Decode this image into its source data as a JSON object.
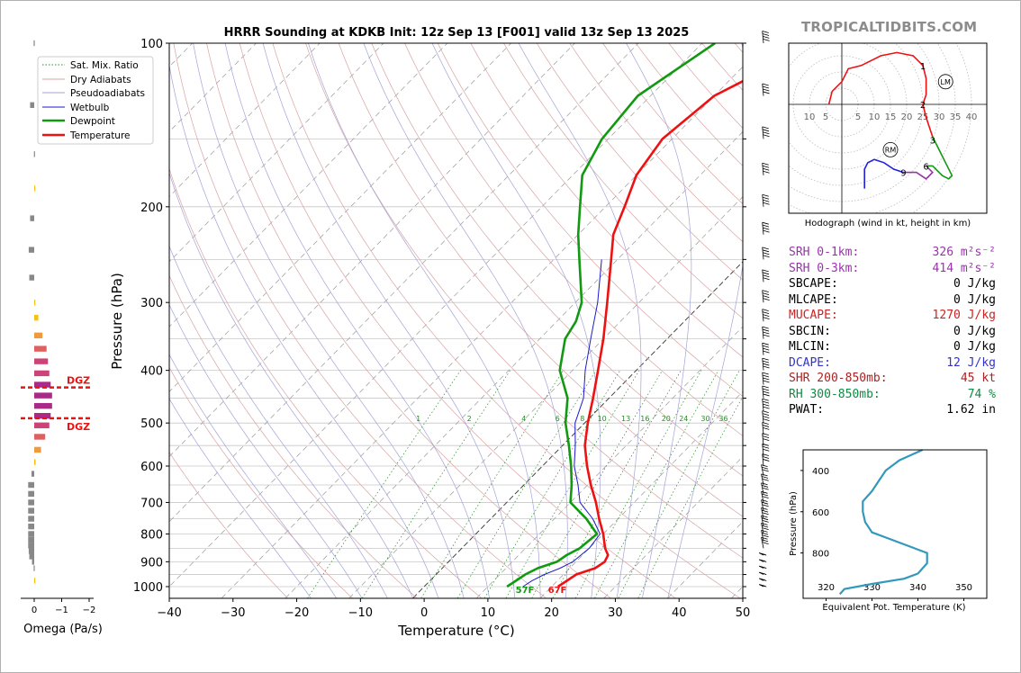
{
  "header": {
    "title": "HRRR Sounding at KDKB Init: 12z Sep 13 [F001] valid 13z Sep 13 2025",
    "brand": "TROPICALTIDBITS.COM"
  },
  "colors": {
    "temperature": "#ee1111",
    "dewpoint": "#119911",
    "wetbulb": "#1a1acc",
    "srh": "#9933aa",
    "mucape": "#cc2222",
    "dcape": "#3333cc",
    "shr": "#aa2222",
    "rh": "#118844",
    "theta_e": "#3399bb"
  },
  "legend": {
    "sat_mix": "Sat. Mix. Ratio",
    "dry": "Dry Adiabats",
    "pseudo": "Pseudoadiabats",
    "wetbulb": "Wetbulb",
    "dewpoint": "Dewpoint",
    "temperature": "Temperature"
  },
  "omega": {
    "xlabel": "Omega (Pa/s)",
    "ticks": [
      "0",
      "−1",
      "−2"
    ],
    "dgz_label": "DGZ"
  },
  "hodograph": {
    "caption": "Hodograph (wind in kt, height in km)",
    "ring_labels": [
      "10",
      "5",
      "5",
      "10",
      "15",
      "20",
      "25",
      "30",
      "35",
      "40"
    ],
    "height_labels": [
      "1",
      "2",
      "3",
      "6",
      "9"
    ],
    "rm": "RM",
    "lm": "LM"
  },
  "params": [
    {
      "label": "SRH 0-1km:",
      "value": "326",
      "unit": "m²s⁻²",
      "color": "#9933aa"
    },
    {
      "label": "SRH 0-3km:",
      "value": "414",
      "unit": "m²s⁻²",
      "color": "#9933aa"
    },
    {
      "label": "SBCAPE:",
      "value": "0 J/kg",
      "color": "#000000"
    },
    {
      "label": "MLCAPE:",
      "value": "0 J/kg",
      "color": "#000000"
    },
    {
      "label": "MUCAPE:",
      "value": "1270 J/kg",
      "color": "#cc2222"
    },
    {
      "label": "SBCIN:",
      "value": "0 J/kg",
      "color": "#000000"
    },
    {
      "label": "MLCIN:",
      "value": "0 J/kg",
      "color": "#000000"
    },
    {
      "label": "DCAPE:",
      "value": "12 J/kg",
      "color": "#3333cc"
    },
    {
      "label": "SHR 200-850mb:",
      "value": "45 kt",
      "color": "#aa2222"
    },
    {
      "label": "RH 300-850mb:",
      "value": "74 %",
      "color": "#118844"
    },
    {
      "label": "PWAT:",
      "value": "1.62 in",
      "color": "#000000"
    }
  ],
  "chart_data": [
    {
      "type": "line",
      "title": "HRRR Sounding at KDKB Init: 12z Sep 13 [F001] valid 13z Sep 13 2025",
      "xlabel": "Temperature (°C)",
      "ylabel": "Pressure (hPa)",
      "xlim": [
        -40,
        50
      ],
      "ylim": [
        1050,
        100
      ],
      "y_scale": "log",
      "x_ticks": [
        "−40",
        "−30",
        "−20",
        "−10",
        "0",
        "10",
        "20",
        "30",
        "40",
        "50"
      ],
      "y_ticks": [
        "100",
        "200",
        "300",
        "400",
        "500",
        "600",
        "700",
        "800",
        "900",
        "1000"
      ],
      "mixing_ratio_labels": [
        "1",
        "2",
        "4",
        "6",
        "8",
        "10",
        "13",
        "16",
        "20",
        "24",
        "30",
        "36"
      ],
      "surface_labels": {
        "dewpoint": "57F",
        "temperature": "67F"
      },
      "series": [
        {
          "name": "Temperature",
          "points": [
            [
              1000,
              21.0
            ],
            [
              975,
              21.5
            ],
            [
              950,
              22.0
            ],
            [
              925,
              24.0
            ],
            [
              900,
              24.5
            ],
            [
              875,
              24.0
            ],
            [
              850,
              22.5
            ],
            [
              800,
              20.0
            ],
            [
              750,
              17.0
            ],
            [
              700,
              14.0
            ],
            [
              650,
              10.5
            ],
            [
              600,
              7.0
            ],
            [
              550,
              3.5
            ],
            [
              500,
              0.5
            ],
            [
              450,
              -2.5
            ],
            [
              400,
              -6.0
            ],
            [
              350,
              -10.0
            ],
            [
              300,
              -15.0
            ],
            [
              250,
              -21.0
            ],
            [
              225,
              -24.5
            ],
            [
              200,
              -27.0
            ],
            [
              175,
              -30.0
            ],
            [
              150,
              -31.5
            ],
            [
              125,
              -30.0
            ],
            [
              100,
              -22.0
            ]
          ]
        },
        {
          "name": "Dewpoint",
          "points": [
            [
              1000,
              13.0
            ],
            [
              975,
              13.5
            ],
            [
              950,
              14.0
            ],
            [
              925,
              15.0
            ],
            [
              900,
              17.0
            ],
            [
              875,
              17.5
            ],
            [
              850,
              18.5
            ],
            [
              800,
              19.0
            ],
            [
              750,
              15.0
            ],
            [
              700,
              10.0
            ],
            [
              650,
              7.5
            ],
            [
              600,
              4.5
            ],
            [
              550,
              1.0
            ],
            [
              500,
              -3.0
            ],
            [
              450,
              -6.5
            ],
            [
              400,
              -12.0
            ],
            [
              350,
              -16.0
            ],
            [
              325,
              -17.0
            ],
            [
              300,
              -19.0
            ],
            [
              250,
              -26.0
            ],
            [
              225,
              -30.0
            ],
            [
              200,
              -34.0
            ],
            [
              175,
              -38.5
            ],
            [
              150,
              -41.0
            ],
            [
              125,
              -42.0
            ],
            [
              100,
              -38.0
            ]
          ]
        },
        {
          "name": "Wetbulb",
          "points": [
            [
              1000,
              15.5
            ],
            [
              975,
              16.0
            ],
            [
              950,
              17.0
            ],
            [
              925,
              18.5
            ],
            [
              900,
              19.5
            ],
            [
              850,
              20.0
            ],
            [
              800,
              19.5
            ],
            [
              750,
              16.0
            ],
            [
              700,
              11.5
            ],
            [
              650,
              8.5
            ],
            [
              600,
              5.0
            ],
            [
              550,
              2.0
            ],
            [
              500,
              -1.5
            ],
            [
              450,
              -4.0
            ],
            [
              400,
              -8.0
            ],
            [
              350,
              -12.0
            ],
            [
              300,
              -16.5
            ],
            [
              250,
              -22.5
            ]
          ]
        }
      ]
    },
    {
      "type": "bar",
      "title": "",
      "xlabel": "Omega (Pa/s)",
      "xlim": [
        0.15,
        -2.2
      ],
      "bars": [
        [
          100,
          0.02
        ],
        [
          130,
          0.15
        ],
        [
          160,
          0.01
        ],
        [
          185,
          -0.03
        ],
        [
          210,
          0.15
        ],
        [
          240,
          0.2
        ],
        [
          270,
          0.18
        ],
        [
          300,
          -0.01
        ],
        [
          320,
          -0.15
        ],
        [
          345,
          -0.3
        ],
        [
          365,
          -0.45
        ],
        [
          385,
          -0.5
        ],
        [
          405,
          -0.55
        ],
        [
          425,
          -0.6
        ],
        [
          445,
          -0.65
        ],
        [
          465,
          -0.65
        ],
        [
          485,
          -0.6
        ],
        [
          505,
          -0.55
        ],
        [
          530,
          -0.4
        ],
        [
          560,
          -0.25
        ],
        [
          590,
          -0.05
        ],
        [
          620,
          0.1
        ],
        [
          650,
          0.22
        ],
        [
          675,
          0.22
        ],
        [
          700,
          0.22
        ],
        [
          725,
          0.22
        ],
        [
          750,
          0.22
        ],
        [
          775,
          0.22
        ],
        [
          800,
          0.22
        ],
        [
          820,
          0.22
        ],
        [
          840,
          0.22
        ],
        [
          860,
          0.2
        ],
        [
          880,
          0.18
        ],
        [
          900,
          0.08
        ],
        [
          925,
          0.02
        ],
        [
          975,
          -0.03
        ]
      ],
      "dgz": [
        430,
        490
      ]
    },
    {
      "type": "line",
      "title": "Hodograph (wind in kt, height in km)",
      "unit": "kt",
      "rings": [
        5,
        10,
        15,
        20,
        25,
        30,
        35,
        40
      ],
      "height_markers": [
        {
          "label": "1",
          "u": 25,
          "v": 12
        },
        {
          "label": "2",
          "u": 25,
          "v": 0
        },
        {
          "label": "3",
          "u": 28,
          "v": -11
        },
        {
          "label": "6",
          "u": 26,
          "v": -19
        },
        {
          "label": "9",
          "u": 19,
          "v": -21
        }
      ],
      "storm_motion": {
        "RM": [
          15,
          -14
        ],
        "LM": [
          32,
          7
        ]
      },
      "segments": [
        {
          "color": "#ee1111",
          "points": [
            [
              -4,
              0
            ],
            [
              -3,
              4
            ],
            [
              0,
              7
            ],
            [
              2,
              11
            ],
            [
              6,
              12
            ],
            [
              12,
              15
            ],
            [
              17,
              16
            ],
            [
              22,
              15
            ],
            [
              25,
              12
            ],
            [
              26,
              8
            ],
            [
              26,
              3
            ],
            [
              25,
              0
            ],
            [
              26,
              -4
            ],
            [
              28,
              -10
            ]
          ]
        },
        {
          "color": "#119911",
          "points": [
            [
              28,
              -10
            ],
            [
              30,
              -14
            ],
            [
              32,
              -18
            ],
            [
              34,
              -22
            ],
            [
              33,
              -23
            ],
            [
              31,
              -22
            ],
            [
              28,
              -19
            ],
            [
              26,
              -19
            ]
          ]
        },
        {
          "color": "#9933aa",
          "points": [
            [
              26,
              -19
            ],
            [
              28,
              -21
            ],
            [
              26,
              -23
            ],
            [
              23,
              -21
            ],
            [
              19,
              -21
            ]
          ]
        },
        {
          "color": "#2222dd",
          "points": [
            [
              19,
              -21
            ],
            [
              16,
              -20
            ],
            [
              13,
              -18
            ],
            [
              10,
              -17
            ],
            [
              8,
              -18
            ],
            [
              7,
              -20
            ],
            [
              7,
              -24
            ],
            [
              7,
              -26
            ]
          ]
        }
      ]
    },
    {
      "type": "line",
      "title": "",
      "xlabel": "Equivalent Pot. Temperature (K)",
      "ylabel": "Pressure (hPa)",
      "xlim": [
        315,
        355
      ],
      "ylim": [
        1020,
        300
      ],
      "x_ticks": [
        "320",
        "330",
        "340",
        "350"
      ],
      "y_ticks": [
        "400",
        "600",
        "800"
      ],
      "series": [
        {
          "name": "",
          "points": [
            [
              1000,
              323
            ],
            [
              975,
              324
            ],
            [
              950,
              330
            ],
            [
              925,
              337
            ],
            [
              900,
              340
            ],
            [
              850,
              342
            ],
            [
              800,
              342
            ],
            [
              775,
              339
            ],
            [
              725,
              333
            ],
            [
              700,
              330
            ],
            [
              650,
              328.5
            ],
            [
              600,
              328
            ],
            [
              550,
              328
            ],
            [
              500,
              330
            ],
            [
              450,
              331.5
            ],
            [
              400,
              333
            ],
            [
              350,
              336
            ],
            [
              300,
              341
            ]
          ]
        }
      ]
    }
  ]
}
